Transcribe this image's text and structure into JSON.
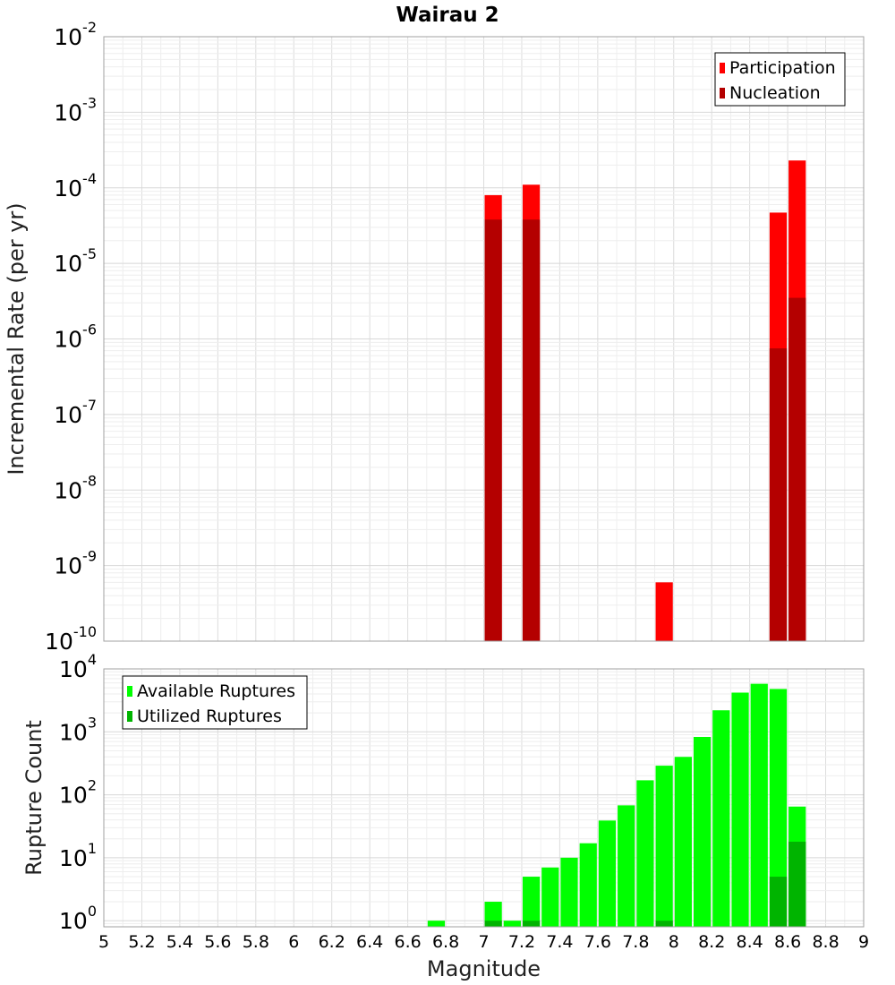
{
  "chart_data": [
    {
      "type": "bar",
      "title": "Wairau 2",
      "xlabel": "",
      "ylabel": "Incremental Rate (per yr)",
      "yscale": "log",
      "xlim": [
        5,
        9
      ],
      "ylim": [
        1e-10,
        0.01
      ],
      "ytick_exponents": [
        -10,
        -9,
        -8,
        -7,
        -6,
        -5,
        -4,
        -3,
        -2
      ],
      "grid": true,
      "legend_position": "top-right",
      "bar_width": 0.1,
      "series": [
        {
          "name": "Participation",
          "color": "#ff0000",
          "x": [
            7.05,
            7.25,
            7.95,
            8.55,
            8.65
          ],
          "values": [
            8e-05,
            0.00011,
            6e-10,
            4.7e-05,
            0.00023
          ]
        },
        {
          "name": "Nucleation",
          "color": "#b40000",
          "x": [
            7.05,
            7.25,
            8.55,
            8.65
          ],
          "values": [
            3.8e-05,
            3.8e-05,
            7.5e-07,
            3.5e-06
          ]
        }
      ]
    },
    {
      "type": "bar",
      "title": "",
      "xlabel": "Magnitude",
      "ylabel": "Rupture Count",
      "yscale": "log",
      "xlim": [
        5,
        9
      ],
      "ylim": [
        0.8,
        10000
      ],
      "ytick_exponents": [
        0,
        1,
        2,
        3,
        4
      ],
      "xticks": [
        "5",
        "5.2",
        "5.4",
        "5.6",
        "5.8",
        "6",
        "6.2",
        "6.4",
        "6.6",
        "6.8",
        "7",
        "7.2",
        "7.4",
        "7.6",
        "7.8",
        "8",
        "8.2",
        "8.4",
        "8.6",
        "8.8",
        "9"
      ],
      "grid": true,
      "legend_position": "top-left",
      "bar_width": 0.1,
      "series": [
        {
          "name": "Available Ruptures",
          "color": "#00ff00",
          "x": [
            6.75,
            7.05,
            7.15,
            7.25,
            7.35,
            7.45,
            7.55,
            7.65,
            7.75,
            7.85,
            7.95,
            8.05,
            8.15,
            8.25,
            8.35,
            8.45,
            8.55,
            8.65
          ],
          "values": [
            1,
            2,
            1,
            5,
            7,
            10,
            17,
            39,
            68,
            170,
            290,
            400,
            830,
            2200,
            4200,
            5800,
            4800,
            65
          ]
        },
        {
          "name": "Utilized Ruptures",
          "color": "#00b400",
          "x": [
            7.05,
            7.25,
            7.95,
            8.55,
            8.65
          ],
          "values": [
            1,
            1,
            1,
            5,
            18
          ]
        }
      ]
    }
  ]
}
